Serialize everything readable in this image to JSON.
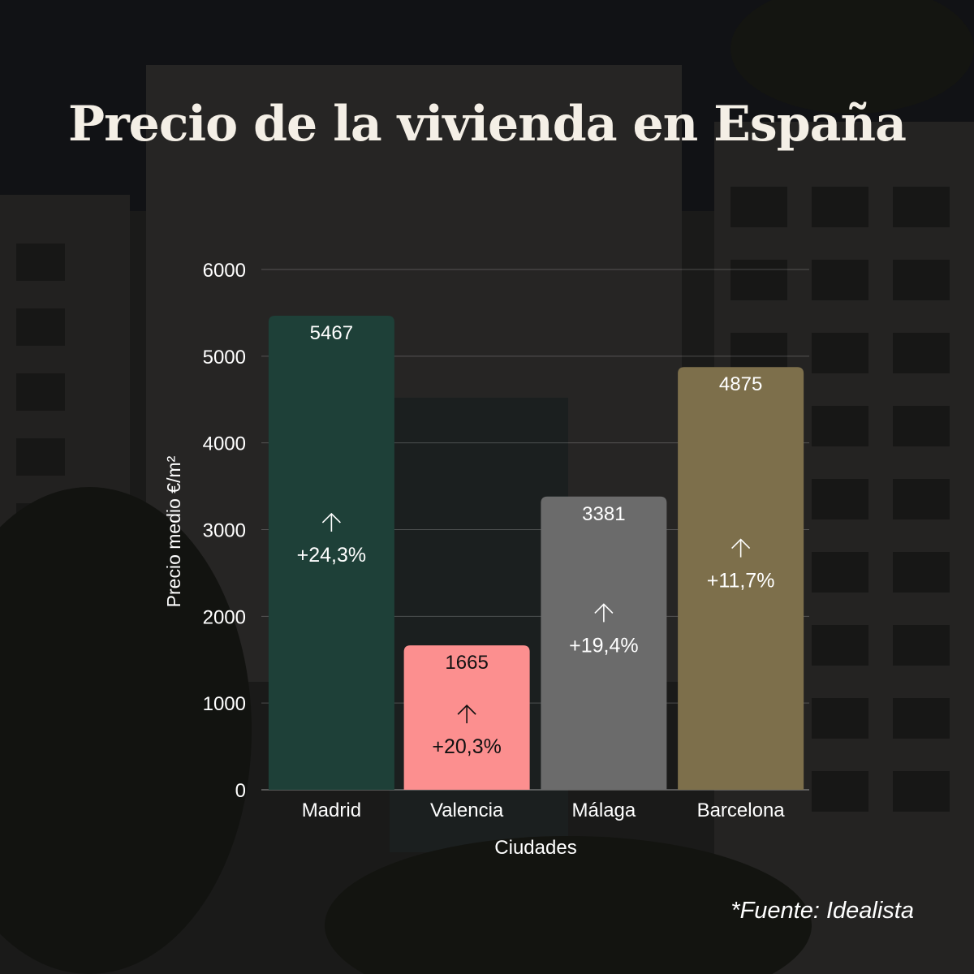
{
  "title": "Precio de la vivienda en España",
  "source": "*Fuente: Idealista",
  "chart_data": {
    "type": "bar",
    "categories": [
      "Madrid",
      "Valencia",
      "Málaga",
      "Barcelona"
    ],
    "values": [
      5467,
      1665,
      3381,
      4875
    ],
    "changes": [
      "+24,3%",
      "+20,3%",
      "+19,4%",
      "+11,7%"
    ],
    "bar_colors": [
      "#1e4038",
      "#fc8f8f",
      "#6b6b6b",
      "#7d6f4b"
    ],
    "label_colors": [
      "#ffffff",
      "#111111",
      "#ffffff",
      "#ffffff"
    ],
    "xlabel": "Ciudades",
    "ylabel": "Precio medio €/m²",
    "ylim": [
      0,
      6000
    ],
    "yticks": [
      0,
      1000,
      2000,
      3000,
      4000,
      5000,
      6000
    ],
    "grid": true
  }
}
